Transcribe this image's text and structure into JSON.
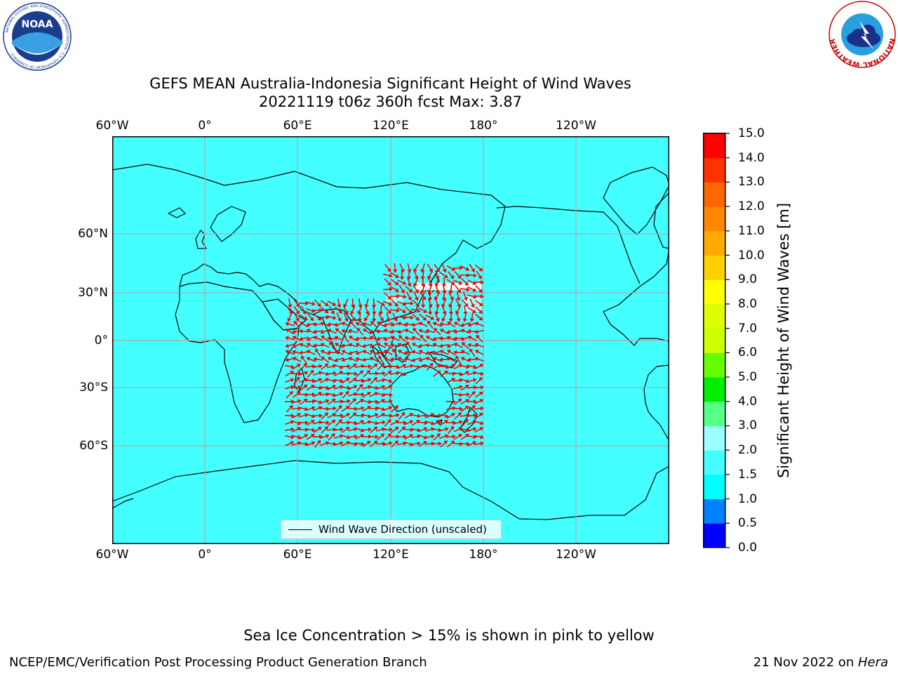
{
  "title": {
    "line1": "GEFS MEAN Australia-Indonesia Significant Height of Wind Waves",
    "line2": "20221119 t06z 360h fcst   Max: 3.87"
  },
  "map": {
    "lon_ticks_top": [
      "60°W",
      "0°",
      "60°E",
      "120°E",
      "180°",
      "120°W"
    ],
    "lon_ticks_bottom": [
      "60°W",
      "0°",
      "60°E",
      "120°E",
      "180°",
      "120°W"
    ],
    "lat_ticks": [
      "60°N",
      "30°N",
      "0°",
      "30°S",
      "60°S"
    ],
    "ocean_color": "#44ffff",
    "arrow_color": "#ff0000",
    "land_outline_color": "#000000",
    "gridline_color": "#aaaaaa",
    "legend_label": "Wind Wave Direction (unscaled)",
    "wave_field_extent": "approx. 50°E–180°, 60°S–40°N"
  },
  "colorbar": {
    "label": "Significant Height of Wind Waves [m]",
    "ticks": [
      "0.0",
      "0.5",
      "1.0",
      "1.5",
      "2.0",
      "3.0",
      "4.0",
      "5.0",
      "6.0",
      "7.0",
      "8.0",
      "9.0",
      "10.0",
      "11.0",
      "12.0",
      "13.0",
      "14.0",
      "15.0"
    ],
    "colors": [
      "#0000ff",
      "#0080ff",
      "#00ffff",
      "#44ffff",
      "#99ffff",
      "#55ff88",
      "#00ee00",
      "#66ff00",
      "#ccff00",
      "#ddff00",
      "#ffff00",
      "#ffd000",
      "#ffaa00",
      "#ff8800",
      "#ff6600",
      "#ff3300",
      "#ff0000"
    ]
  },
  "logos": {
    "noaa_text": "NOAA",
    "noaa_ring": "NATIONAL OCEANIC AND ATMOSPHERIC ADMINISTRATION · U.S. DEPARTMENT OF COMMERCE",
    "nws_ring": "NATIONAL WEATHER SERVICE"
  },
  "footer": {
    "ice_note": "Sea Ice Concentration > 15% is shown in pink to yellow",
    "org": "NCEP/EMC/Verification Post Processing Product Generation Branch",
    "date": "21 Nov 2022 on ",
    "machine": "Hera"
  }
}
